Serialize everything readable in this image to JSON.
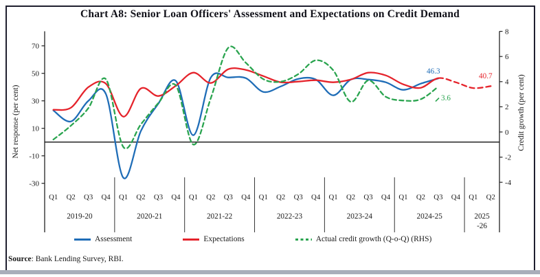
{
  "title": "Chart A8: Senior Loan Officers' Assessment and Expectations on Credit Demand",
  "source": {
    "label": "Source",
    "text": ":  Bank Lending Survey, RBI."
  },
  "legend": [
    {
      "label": "Assessment",
      "color": "#1f6db7",
      "dashed": false
    },
    {
      "label": "Expectations",
      "color": "#e5232b",
      "dashed": false
    },
    {
      "label": "Actual credit growth (Q-o-Q) (RHS)",
      "color": "#2aa44f",
      "dashed": true
    }
  ],
  "chart_data": {
    "type": "line",
    "title": "Chart A8: Senior Loan Officers' Assessment and Expectations on Credit Demand",
    "left_axis": {
      "label": "Net  response (per cent)",
      "ticks": [
        -30,
        -10,
        10,
        30,
        50,
        70
      ],
      "range": [
        -32,
        80
      ]
    },
    "right_axis": {
      "label": "Credit growth (per cent)",
      "ticks": [
        -4,
        -2,
        0,
        2,
        4,
        6,
        8
      ],
      "range": [
        -4.2,
        8
      ]
    },
    "x_groups": [
      {
        "year": "2019-20",
        "year_lines": [
          "2019-20"
        ],
        "quarters": [
          "Q1",
          "Q2",
          "Q3",
          "Q4"
        ]
      },
      {
        "year": "2020-21",
        "year_lines": [
          "2020-21"
        ],
        "quarters": [
          "Q1",
          "Q2",
          "Q3",
          "Q4"
        ]
      },
      {
        "year": "2021-22",
        "year_lines": [
          "2021-22"
        ],
        "quarters": [
          "Q1",
          "Q2",
          "Q3",
          "Q4"
        ]
      },
      {
        "year": "2022-23",
        "year_lines": [
          "2022-23"
        ],
        "quarters": [
          "Q1",
          "Q2",
          "Q3",
          "Q4"
        ]
      },
      {
        "year": "2023-24",
        "year_lines": [
          "2023-24"
        ],
        "quarters": [
          "Q1",
          "Q2",
          "Q3",
          "Q4"
        ]
      },
      {
        "year": "2024-25",
        "year_lines": [
          "2024-25"
        ],
        "quarters": [
          "Q1",
          "Q2",
          "Q3",
          "Q4"
        ]
      },
      {
        "year": "2025-26",
        "year_lines": [
          "2025",
          "-26"
        ],
        "quarters": [
          "Q1",
          "Q2"
        ]
      }
    ],
    "series": [
      {
        "name": "Assessment",
        "axis": "left",
        "color": "#1f6db7",
        "style": "solid",
        "values": [
          23,
          15,
          30,
          35,
          -26,
          8,
          28,
          44.5,
          5,
          47,
          47,
          46.5,
          36.5,
          40.5,
          46,
          45.5,
          34,
          45.5,
          45.5,
          43.5,
          38,
          42.5,
          46.3
        ]
      },
      {
        "name": "Expectations",
        "axis": "left",
        "color": "#e5232b",
        "style": "solid_then_dashed",
        "dash_from_index": 22,
        "values": [
          23.5,
          25,
          40,
          42.5,
          18.5,
          39,
          33.5,
          41,
          50.5,
          43,
          53,
          52.5,
          48,
          43.5,
          44,
          45,
          43.5,
          45.5,
          50.5,
          48.5,
          42,
          39.5,
          46.5,
          43.5,
          39.3,
          40.7
        ]
      },
      {
        "name": "Actual credit growth (Q-o-Q) (RHS)",
        "axis": "right",
        "color": "#2aa44f",
        "style": "dashed",
        "values": [
          -0.6,
          0.5,
          1.9,
          4.2,
          -1.2,
          0.6,
          2.3,
          3.7,
          -1.0,
          2.7,
          6.7,
          5.5,
          4.2,
          4.0,
          4.6,
          5.7,
          4.9,
          2.4,
          4.1,
          2.8,
          2.5,
          2.6,
          3.6
        ]
      }
    ],
    "end_labels": [
      {
        "text": "46.3",
        "x": 621,
        "y": 107,
        "color": "#1f6db7",
        "leader": false
      },
      {
        "text": "40.7",
        "x": 697,
        "y": 114,
        "color": "#e5232b",
        "leader": false
      },
      {
        "text": "3.6",
        "x": 642,
        "y": 146,
        "color": "#2aa44f",
        "leader": true
      }
    ],
    "legend_position": "bottom",
    "grid": false
  }
}
